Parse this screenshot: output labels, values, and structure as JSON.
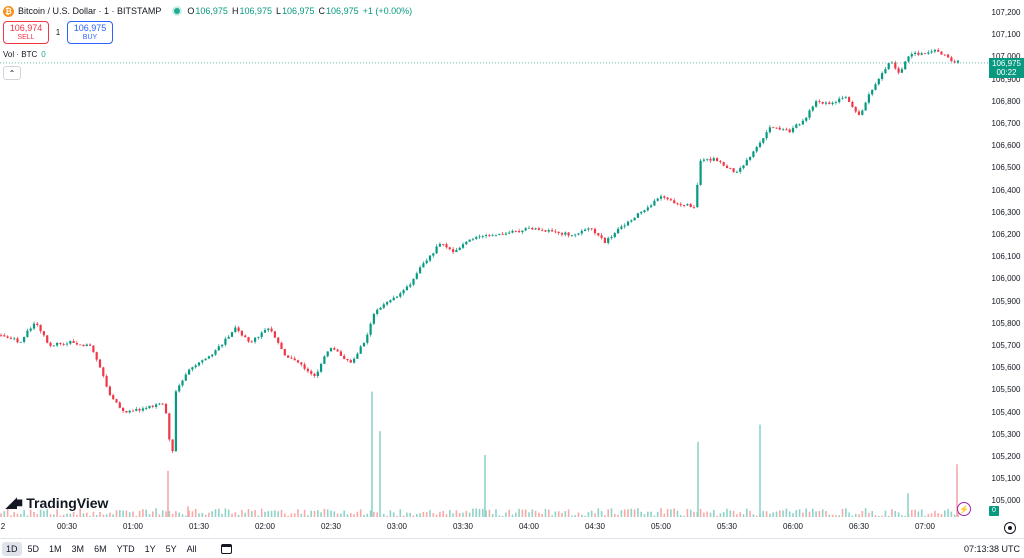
{
  "symbol": {
    "title": "Bitcoin / U.S. Dollar · 1 · BITSTAMP",
    "coin_glyph": "₿",
    "open_key": "O",
    "open": "106,975",
    "high_key": "H",
    "high": "106,975",
    "low_key": "L",
    "low": "106,975",
    "close_key": "C",
    "close": "106,975",
    "change": "+1 (+0.00%)"
  },
  "trade": {
    "sell_price": "106,974",
    "sell_label": "SELL",
    "spread": "1",
    "buy_price": "106,975",
    "buy_label": "BUY"
  },
  "volume_legend": {
    "label": "Vol · BTC",
    "value": "0"
  },
  "collapse_icon": "chevron-up-icon",
  "last_price_tag": {
    "price": "106,975",
    "countdown": "00:22"
  },
  "volume_tag": "0",
  "price_scale": [
    "107,200",
    "107,100",
    "107,000",
    "106,900",
    "106,800",
    "106,700",
    "106,600",
    "106,500",
    "106,400",
    "106,300",
    "106,200",
    "106,100",
    "106,000",
    "105,900",
    "105,800",
    "105,700",
    "105,600",
    "105,500",
    "105,400",
    "105,300",
    "105,200",
    "105,100",
    "105,000"
  ],
  "time_axis": [
    "2",
    "00:30",
    "01:00",
    "01:30",
    "02:00",
    "02:30",
    "03:00",
    "03:30",
    "04:00",
    "04:30",
    "05:00",
    "05:30",
    "06:00",
    "06:30",
    "07:00"
  ],
  "brand": "TradingView",
  "ranges": [
    "1D",
    "5D",
    "1M",
    "3M",
    "6M",
    "YTD",
    "1Y",
    "5Y",
    "All"
  ],
  "active_range": "1D",
  "clock": "07:13:38 UTC",
  "colors": {
    "up": "#089981",
    "down": "#f23645",
    "vol_up": "#8fd3c8",
    "vol_down": "#f7a9a7",
    "accent": "#2962ff"
  },
  "chart_data": {
    "type": "candlestick",
    "symbol": "BTCUSD",
    "interval": "1",
    "ylim": [
      104950,
      107250
    ],
    "price_path": [
      [
        0,
        105750
      ],
      [
        20,
        105720
      ],
      [
        35,
        105810
      ],
      [
        50,
        105700
      ],
      [
        70,
        105720
      ],
      [
        90,
        105700
      ],
      [
        100,
        105600
      ],
      [
        110,
        105480
      ],
      [
        125,
        105400
      ],
      [
        145,
        105420
      ],
      [
        165,
        105440
      ],
      [
        172,
        105170
      ],
      [
        176,
        105500
      ],
      [
        190,
        105600
      ],
      [
        210,
        105650
      ],
      [
        220,
        105700
      ],
      [
        235,
        105780
      ],
      [
        250,
        105720
      ],
      [
        270,
        105780
      ],
      [
        285,
        105660
      ],
      [
        300,
        105620
      ],
      [
        315,
        105560
      ],
      [
        330,
        105700
      ],
      [
        350,
        105620
      ],
      [
        365,
        105720
      ],
      [
        375,
        105860
      ],
      [
        395,
        105920
      ],
      [
        410,
        105980
      ],
      [
        425,
        106080
      ],
      [
        440,
        106160
      ],
      [
        455,
        106120
      ],
      [
        470,
        106180
      ],
      [
        490,
        106200
      ],
      [
        510,
        106210
      ],
      [
        530,
        106230
      ],
      [
        550,
        106220
      ],
      [
        570,
        106200
      ],
      [
        590,
        106230
      ],
      [
        605,
        106170
      ],
      [
        620,
        106230
      ],
      [
        640,
        106300
      ],
      [
        660,
        106370
      ],
      [
        680,
        106340
      ],
      [
        695,
        106330
      ],
      [
        700,
        106540
      ],
      [
        715,
        106540
      ],
      [
        735,
        106480
      ],
      [
        750,
        106550
      ],
      [
        770,
        106680
      ],
      [
        790,
        106670
      ],
      [
        805,
        106720
      ],
      [
        815,
        106800
      ],
      [
        830,
        106790
      ],
      [
        845,
        106820
      ],
      [
        860,
        106730
      ],
      [
        870,
        106840
      ],
      [
        890,
        106980
      ],
      [
        900,
        106930
      ],
      [
        910,
        107020
      ],
      [
        925,
        107010
      ],
      [
        935,
        107040
      ],
      [
        950,
        106990
      ],
      [
        960,
        106975
      ]
    ],
    "volume_spikes": [
      [
        168,
        0.35,
        "down"
      ],
      [
        188,
        0.08,
        "down"
      ],
      [
        372,
        0.95,
        "up"
      ],
      [
        380,
        0.65,
        "up"
      ],
      [
        485,
        0.47,
        "up"
      ],
      [
        698,
        0.57,
        "up"
      ],
      [
        760,
        0.7,
        "up"
      ],
      [
        908,
        0.18,
        "up"
      ],
      [
        957,
        0.4,
        "down"
      ]
    ],
    "volume_base": 0.06
  }
}
